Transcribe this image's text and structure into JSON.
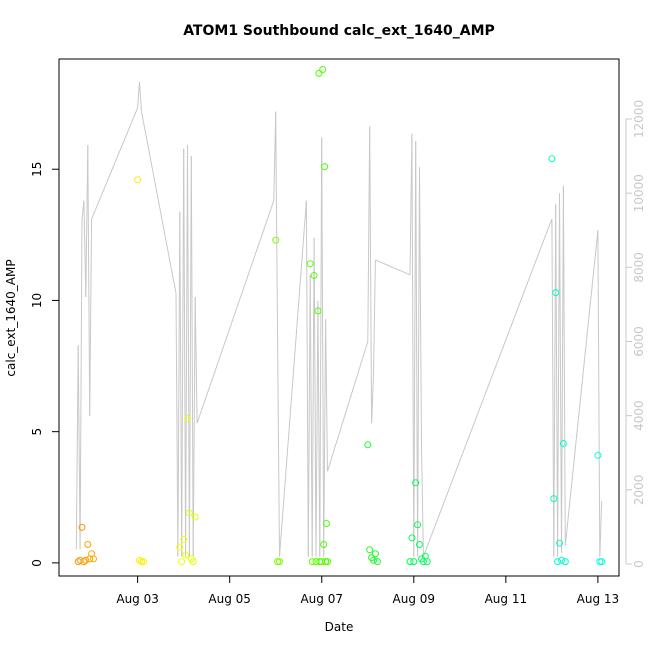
{
  "chart_data": {
    "type": "scatter",
    "title": "ATOM1 Southbound calc_ext_1640_AMP",
    "xlabel": "Date",
    "ylabel": "calc_ext_1640_AMP",
    "x_ticks": [
      "Aug 03",
      "Aug 05",
      "Aug 07",
      "Aug 09",
      "Aug 11",
      "Aug 13"
    ],
    "y_ticks": [
      "0",
      "5",
      "10",
      "15"
    ],
    "y2_ticks": [
      "0",
      "2000",
      "4000",
      "6000",
      "8000",
      "10000",
      "12000"
    ],
    "xlim": [
      "Aug 01 07:00",
      "Aug 13 11:00"
    ],
    "ylim": [
      -0.5,
      19.2
    ],
    "y2lim": [
      0,
      12000
    ],
    "grid": false,
    "legend": "none",
    "colors": {
      "line": "#c8c8c8",
      "axis": "#000000",
      "right_axis": "#c8c8c8"
    },
    "series": [
      {
        "axis": "left",
        "marker": "open-circle",
        "points": [
          [
            "Aug 01 17:00",
            0.05,
            "#ff9100"
          ],
          [
            "Aug 01 18:00",
            0.1,
            "#ff9400"
          ],
          [
            "Aug 01 19:00",
            1.35,
            "#ff9600"
          ],
          [
            "Aug 01 20:00",
            0.05,
            "#ff9900"
          ],
          [
            "Aug 01 21:00",
            0.1,
            "#ff9c00"
          ],
          [
            "Aug 01 22:00",
            0.7,
            "#ffa000"
          ],
          [
            "Aug 01 23:00",
            0.15,
            "#ffa400"
          ],
          [
            "Aug 02 00:00",
            0.35,
            "#ffa800"
          ],
          [
            "Aug 02 01:00",
            0.15,
            "#ffab00"
          ],
          [
            "Aug 03 00:00",
            14.6,
            "#ffe800"
          ],
          [
            "Aug 03 01:00",
            0.1,
            "#ffec00"
          ],
          [
            "Aug 03 02:00",
            0.05,
            "#ffee00"
          ],
          [
            "Aug 03 03:00",
            0.05,
            "#fff000"
          ],
          [
            "Aug 03 22:00",
            0.6,
            "#f6ff00"
          ],
          [
            "Aug 03 23:00",
            0.05,
            "#f3ff00"
          ],
          [
            "Aug 04 00:00",
            0.9,
            "#f0ff00"
          ],
          [
            "Aug 04 01:00",
            0.3,
            "#edff00"
          ],
          [
            "Aug 04 02:00",
            5.5,
            "#eaff00"
          ],
          [
            "Aug 04 03:00",
            1.9,
            "#e7ff00"
          ],
          [
            "Aug 04 04:00",
            0.15,
            "#e4ff00"
          ],
          [
            "Aug 04 05:00",
            0.05,
            "#e1ff00"
          ],
          [
            "Aug 04 06:00",
            1.75,
            "#deff00"
          ],
          [
            "Aug 06 00:00",
            12.3,
            "#7eff00"
          ],
          [
            "Aug 06 01:00",
            0.05,
            "#7bff00"
          ],
          [
            "Aug 06 02:00",
            0.05,
            "#78ff00"
          ],
          [
            "Aug 06 18:00",
            11.4,
            "#5cff00"
          ],
          [
            "Aug 06 20:00",
            10.95,
            "#58ff00"
          ],
          [
            "Aug 06 22:00",
            9.6,
            "#54ff00"
          ],
          [
            "Aug 06 19:00",
            0.05,
            "#5aff00"
          ],
          [
            "Aug 06 21:00",
            0.05,
            "#56ff00"
          ],
          [
            "Aug 06 23:00",
            0.05,
            "#52ff00"
          ],
          [
            "Aug 07 00:00",
            0.05,
            "#50ff00"
          ],
          [
            "Aug 07 01:00",
            0.7,
            "#4eff00"
          ],
          [
            "Aug 07 02:00",
            0.05,
            "#4cff00"
          ],
          [
            "Aug 06 22:30",
            18.65,
            "#53ff00"
          ],
          [
            "Aug 07 00:30",
            18.8,
            "#4fff00"
          ],
          [
            "Aug 07 01:30",
            15.1,
            "#4dff00"
          ],
          [
            "Aug 07 02:30",
            1.5,
            "#4bff00"
          ],
          [
            "Aug 07 03:00",
            0.05,
            "#4aff00"
          ],
          [
            "Aug 08 00:00",
            4.5,
            "#20ff22"
          ],
          [
            "Aug 08 01:00",
            0.5,
            "#1eff24"
          ],
          [
            "Aug 08 02:00",
            0.2,
            "#1cff26"
          ],
          [
            "Aug 08 03:00",
            0.1,
            "#1aff28"
          ],
          [
            "Aug 08 04:00",
            0.35,
            "#18ff2a"
          ],
          [
            "Aug 08 05:00",
            0.05,
            "#16ff2c"
          ],
          [
            "Aug 08 22:00",
            0.05,
            "#00ff50"
          ],
          [
            "Aug 08 23:00",
            0.95,
            "#00ff52"
          ],
          [
            "Aug 09 00:00",
            0.05,
            "#00ff54"
          ],
          [
            "Aug 09 01:00",
            3.05,
            "#00ff56"
          ],
          [
            "Aug 09 02:00",
            1.45,
            "#00ff58"
          ],
          [
            "Aug 09 03:00",
            0.7,
            "#00ff5a"
          ],
          [
            "Aug 09 04:00",
            0.15,
            "#00ff5c"
          ],
          [
            "Aug 09 05:00",
            0.05,
            "#00ff5e"
          ],
          [
            "Aug 09 06:00",
            0.25,
            "#00ff60"
          ],
          [
            "Aug 09 07:00",
            0.05,
            "#00ff62"
          ],
          [
            "Aug 12 00:00",
            15.4,
            "#00ffbe"
          ],
          [
            "Aug 12 01:00",
            2.45,
            "#00ffc0"
          ],
          [
            "Aug 12 02:00",
            10.3,
            "#00ffc2"
          ],
          [
            "Aug 12 03:00",
            0.05,
            "#00ffc4"
          ],
          [
            "Aug 12 04:00",
            0.75,
            "#00ffc6"
          ],
          [
            "Aug 12 05:00",
            0.1,
            "#00ffc8"
          ],
          [
            "Aug 12 06:00",
            4.55,
            "#00ffca"
          ],
          [
            "Aug 12 07:00",
            0.05,
            "#00ffcc"
          ],
          [
            "Aug 13 00:00",
            4.1,
            "#00ffdc"
          ],
          [
            "Aug 13 01:00",
            0.05,
            "#00ffdd"
          ],
          [
            "Aug 13 02:00",
            0.05,
            "#00ffde"
          ]
        ]
      },
      {
        "axis": "right",
        "line": true,
        "points": [
          [
            "Aug 01 16:00",
            400
          ],
          [
            "Aug 01 17:00",
            5900
          ],
          [
            "Aug 01 18:00",
            400
          ],
          [
            "Aug 01 19:00",
            9300
          ],
          [
            "Aug 01 20:00",
            9800
          ],
          [
            "Aug 01 21:00",
            7200
          ],
          [
            "Aug 01 22:00",
            11300
          ],
          [
            "Aug 01 23:00",
            4000
          ],
          [
            "Aug 02 00:00",
            9300
          ],
          [
            "Aug 03 00:00",
            12300
          ],
          [
            "Aug 03 01:00",
            13000
          ],
          [
            "Aug 03 02:00",
            12200
          ],
          [
            "Aug 03 20:00",
            7300
          ],
          [
            "Aug 03 21:00",
            200
          ],
          [
            "Aug 03 22:00",
            9500
          ],
          [
            "Aug 03 23:00",
            200
          ],
          [
            "Aug 04 00:00",
            11200
          ],
          [
            "Aug 04 01:00",
            200
          ],
          [
            "Aug 04 02:00",
            11300
          ],
          [
            "Aug 04 03:00",
            200
          ],
          [
            "Aug 04 04:00",
            11000
          ],
          [
            "Aug 04 05:00",
            200
          ],
          [
            "Aug 04 06:00",
            7200
          ],
          [
            "Aug 04 07:00",
            3800
          ],
          [
            "Aug 05 23:00",
            9800
          ],
          [
            "Aug 06 00:00",
            12200
          ],
          [
            "Aug 06 01:00",
            6000
          ],
          [
            "Aug 06 02:00",
            200
          ],
          [
            "Aug 06 16:00",
            9800
          ],
          [
            "Aug 06 17:00",
            200
          ],
          [
            "Aug 06 18:00",
            7800
          ],
          [
            "Aug 06 19:00",
            200
          ],
          [
            "Aug 06 20:00",
            8800
          ],
          [
            "Aug 06 21:00",
            200
          ],
          [
            "Aug 06 22:00",
            7100
          ],
          [
            "Aug 06 23:00",
            200
          ],
          [
            "Aug 07 00:00",
            11500
          ],
          [
            "Aug 07 01:00",
            200
          ],
          [
            "Aug 07 02:00",
            6600
          ],
          [
            "Aug 07 03:00",
            2500
          ],
          [
            "Aug 08 00:00",
            6000
          ],
          [
            "Aug 08 01:00",
            11800
          ],
          [
            "Aug 08 02:00",
            3800
          ],
          [
            "Aug 08 03:00",
            5100
          ],
          [
            "Aug 08 04:00",
            8200
          ],
          [
            "Aug 08 22:00",
            7800
          ],
          [
            "Aug 08 23:00",
            11600
          ],
          [
            "Aug 09 00:00",
            200
          ],
          [
            "Aug 09 01:00",
            11400
          ],
          [
            "Aug 09 02:00",
            200
          ],
          [
            "Aug 09 03:00",
            10700
          ],
          [
            "Aug 09 04:00",
            3200
          ],
          [
            "Aug 09 05:00",
            200
          ],
          [
            "Aug 11 21:00",
            8900
          ],
          [
            "Aug 12 00:00",
            9300
          ],
          [
            "Aug 12 01:00",
            200
          ],
          [
            "Aug 12 02:00",
            9700
          ],
          [
            "Aug 12 03:00",
            200
          ],
          [
            "Aug 12 04:00",
            10000
          ],
          [
            "Aug 12 05:00",
            300
          ],
          [
            "Aug 12 06:00",
            10200
          ],
          [
            "Aug 12 07:00",
            500
          ],
          [
            "Aug 13 00:00",
            9000
          ],
          [
            "Aug 13 01:00",
            200
          ],
          [
            "Aug 13 02:00",
            1700
          ]
        ]
      }
    ]
  }
}
